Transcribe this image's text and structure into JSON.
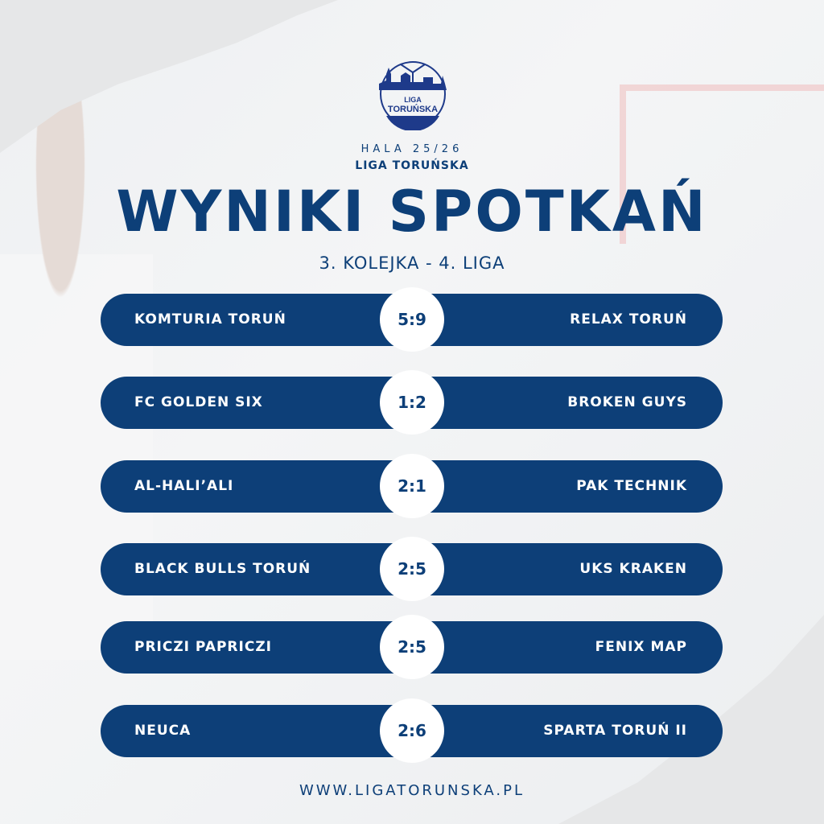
{
  "logo": {
    "text_line1": "LIGA",
    "text_line2": "TORUŃSKA"
  },
  "header": {
    "season": "HALA 25/26",
    "league": "LIGA TORUŃSKA",
    "title": "WYNIKI SPOTKAŃ",
    "subtitle": "3. KOLEJKA - 4. LIGA"
  },
  "matches": [
    {
      "home": "KOMTURIA TORUŃ",
      "score": "5:9",
      "away": "RELAX TORUŃ"
    },
    {
      "home": "FC GOLDEN SIX",
      "score": "1:2",
      "away": "BROKEN GUYS"
    },
    {
      "home": "AL-HALI’ALI",
      "score": "2:1",
      "away": "PAK TECHNIK"
    },
    {
      "home": "BLACK BULLS TORUŃ",
      "score": "2:5",
      "away": "UKS KRAKEN"
    },
    {
      "home": "PRICZI PAPRICZI",
      "score": "2:5",
      "away": "FENIX MAP"
    },
    {
      "home": "NEUCA",
      "score": "2:6",
      "away": "SPARTA TORUŃ II"
    }
  ],
  "footer": {
    "url": "WWW.LIGATORUNSKA.PL"
  },
  "colors": {
    "primary": "#0d3f78",
    "background": "#f0f1f2"
  }
}
